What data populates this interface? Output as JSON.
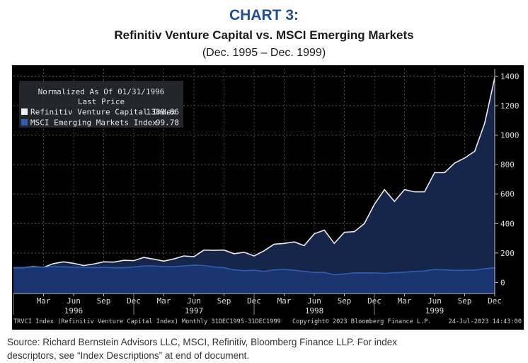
{
  "header": {
    "chart_number": "CHART 3:",
    "title": "Refinitiv Venture Capital vs. MSCI Emerging Markets",
    "subtitle": "(Dec. 1995 – Dec. 1999)"
  },
  "legend": {
    "heading1": "Normalized As Of 01/31/1996",
    "heading2": "Last Price"
  },
  "footer": {
    "left": "TRVCI Index (Refinitiv Venture Capital Index)  Monthly 31DEC1995-31DEC1999",
    "center": "Copyright© 2023 Bloomberg Finance L.P.",
    "right": "24-Jul-2023 14:43:00"
  },
  "source": "Source: Richard Bernstein Advisors LLC, MSCI, Refinitiv, Bloomberg Finance LLP.  For index descriptors, see “Index Descriptions” at end of document.",
  "colors": {
    "background": "#000000",
    "vc_line": "#e8eaf0",
    "vc_fill": "#16254a",
    "em_line": "#2a5fb8",
    "em_fill": "#1a3470",
    "title_blue": "#1f4e9c"
  },
  "chart_data": {
    "type": "area",
    "x": [
      "1995-12",
      "1996-01",
      "1996-02",
      "1996-03",
      "1996-04",
      "1996-05",
      "1996-06",
      "1996-07",
      "1996-08",
      "1996-09",
      "1996-10",
      "1996-11",
      "1996-12",
      "1997-01",
      "1997-02",
      "1997-03",
      "1997-04",
      "1997-05",
      "1997-06",
      "1997-07",
      "1997-08",
      "1997-09",
      "1997-10",
      "1997-11",
      "1997-12",
      "1998-01",
      "1998-02",
      "1998-03",
      "1998-04",
      "1998-05",
      "1998-06",
      "1998-07",
      "1998-08",
      "1998-09",
      "1998-10",
      "1998-11",
      "1998-12",
      "1999-01",
      "1999-02",
      "1999-03",
      "1999-04",
      "1999-05",
      "1999-06",
      "1999-07",
      "1999-08",
      "1999-09",
      "1999-10",
      "1999-11",
      "1999-12"
    ],
    "series": [
      {
        "name": "Refinitiv Venture Capital Index",
        "last_price": "1389.86",
        "values": [
          100,
          100,
          108,
          103,
          128,
          140,
          130,
          115,
          125,
          140,
          138,
          150,
          148,
          170,
          158,
          145,
          160,
          180,
          175,
          220,
          218,
          220,
          195,
          205,
          180,
          215,
          260,
          265,
          275,
          250,
          330,
          355,
          265,
          340,
          345,
          400,
          530,
          630,
          550,
          630,
          615,
          615,
          745,
          745,
          810,
          845,
          890,
          1080,
          1390
        ]
      },
      {
        "name": "MSCI Emerging Markets Index",
        "last_price": "99.78",
        "values": [
          100,
          100,
          105,
          104,
          108,
          106,
          104,
          103,
          101,
          103,
          100,
          100,
          105,
          112,
          113,
          108,
          108,
          112,
          118,
          115,
          105,
          100,
          85,
          80,
          83,
          75,
          85,
          88,
          83,
          75,
          68,
          68,
          52,
          58,
          65,
          65,
          65,
          62,
          66,
          70,
          75,
          78,
          88,
          85,
          82,
          83,
          84,
          93,
          100
        ]
      }
    ],
    "x_ticks": [
      "Mar",
      "Jun",
      "Sep",
      "Dec",
      "Mar",
      "Jun",
      "Sep",
      "Dec",
      "Mar",
      "Jun",
      "Sep",
      "Dec",
      "Mar",
      "Jun",
      "Sep",
      "Dec"
    ],
    "x_years": [
      "1996",
      "1997",
      "1998",
      "1999"
    ],
    "y_ticks": [
      0,
      200,
      400,
      600,
      800,
      1000,
      1200,
      1400
    ],
    "ylim": [
      -75,
      1450
    ],
    "grid": true,
    "legend_position": "top-left"
  }
}
